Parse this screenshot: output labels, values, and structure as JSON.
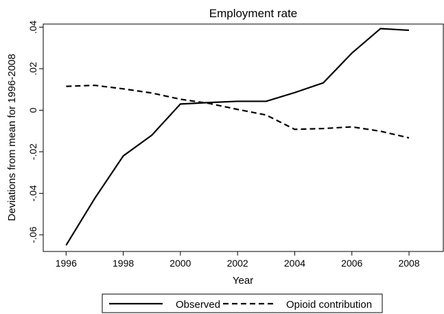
{
  "chart_data": {
    "type": "line",
    "title": "Employment rate",
    "xlabel": "Year",
    "ylabel": "Deviations from mean for 1996-2008",
    "xlim": [
      1995.2,
      2009.2
    ],
    "ylim": [
      -0.068,
      0.0415
    ],
    "x_ticks": [
      1996,
      1998,
      2000,
      2002,
      2004,
      2006,
      2008
    ],
    "y_ticks": [
      -0.06,
      -0.04,
      -0.02,
      0,
      0.02,
      0.04
    ],
    "y_tick_labels": [
      "-.06",
      "-.04",
      "-.02",
      "0",
      ".02",
      ".04"
    ],
    "grid": false,
    "legend_position": "bottom",
    "x": [
      1996,
      1997,
      1998,
      1999,
      2000,
      2001,
      2002,
      2003,
      2004,
      2005,
      2006,
      2007,
      2008
    ],
    "series": [
      {
        "name": "Observed",
        "style": "solid",
        "color": "#000000",
        "values": [
          -0.065,
          -0.0425,
          -0.022,
          -0.012,
          0.003,
          0.0037,
          0.0043,
          0.0043,
          0.0085,
          0.0132,
          0.0275,
          0.0393,
          0.0385
        ]
      },
      {
        "name": "Opioid contribution",
        "style": "dashed",
        "color": "#000000",
        "values": [
          0.0115,
          0.012,
          0.0103,
          0.0083,
          0.0053,
          0.0033,
          0.0004,
          -0.0023,
          -0.0092,
          -0.0088,
          -0.008,
          -0.0101,
          -0.0133
        ]
      }
    ]
  }
}
